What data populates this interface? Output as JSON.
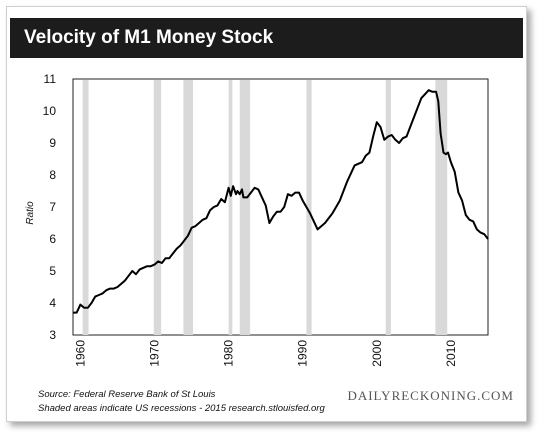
{
  "chart_data": {
    "type": "line",
    "title": "Velocity of M1 Money Stock",
    "xlabel": "",
    "ylabel": "Ratio",
    "xlim": [
      1959,
      2015
    ],
    "ylim": [
      3,
      11
    ],
    "x_ticks": [
      1960,
      1970,
      1980,
      1990,
      2000,
      2010
    ],
    "y_ticks": [
      3,
      4,
      5,
      6,
      7,
      8,
      9,
      10,
      11
    ],
    "grid": false,
    "legend": "none",
    "series_color": "#000000",
    "recession_color": "#d9d9d9",
    "recessions": [
      [
        1960.3,
        1961.1
      ],
      [
        1969.9,
        1970.9
      ],
      [
        1973.9,
        1975.2
      ],
      [
        1980.0,
        1980.5
      ],
      [
        1981.5,
        1982.9
      ],
      [
        1990.5,
        1991.2
      ],
      [
        2001.2,
        2001.9
      ],
      [
        2007.9,
        2009.5
      ]
    ],
    "series": [
      {
        "x": [
          1959,
          1959.5,
          1960,
          1960.5,
          1961,
          1961.5,
          1962,
          1962.5,
          1963,
          1963.5,
          1964,
          1964.5,
          1965,
          1966,
          1966.5,
          1967,
          1967.5,
          1968,
          1968.5,
          1969,
          1969.5,
          1970,
          1970.5,
          1971,
          1971.5,
          1972,
          1972.5,
          1973,
          1973.5,
          1974,
          1974.5,
          1975,
          1975.5,
          1976,
          1976.5,
          1977,
          1977.5,
          1978,
          1978.5,
          1979,
          1979.5,
          1980,
          1980.3,
          1980.6,
          1981,
          1981.2,
          1981.5,
          1981.8,
          1982,
          1982.5,
          1983,
          1983.5,
          1984,
          1984.5,
          1985,
          1985.5,
          1986,
          1986.5,
          1987,
          1987.5,
          1988,
          1988.5,
          1989,
          1989.5,
          1990,
          1991,
          1992,
          1993,
          1994,
          1995,
          1996,
          1997,
          1998,
          1998.5,
          1999,
          1999.5,
          2000,
          2000.5,
          2001,
          2001.5,
          2002,
          2002.5,
          2003,
          2003.5,
          2004,
          2005,
          2006,
          2007,
          2007.5,
          2008,
          2008.3,
          2008.6,
          2009,
          2009.3,
          2009.6,
          2010,
          2010.5,
          2011,
          2011.5,
          2012,
          2012.5,
          2013,
          2013.5,
          2014,
          2014.5,
          2015
        ],
        "values": [
          3.7,
          3.7,
          3.95,
          3.85,
          3.85,
          4.0,
          4.2,
          4.25,
          4.3,
          4.4,
          4.45,
          4.45,
          4.5,
          4.7,
          4.85,
          5.0,
          4.9,
          5.05,
          5.1,
          5.15,
          5.15,
          5.2,
          5.3,
          5.25,
          5.4,
          5.4,
          5.55,
          5.7,
          5.8,
          5.95,
          6.1,
          6.35,
          6.4,
          6.5,
          6.6,
          6.65,
          6.9,
          7.0,
          7.05,
          7.25,
          7.15,
          7.6,
          7.35,
          7.65,
          7.4,
          7.5,
          7.4,
          7.55,
          7.3,
          7.3,
          7.45,
          7.6,
          7.55,
          7.3,
          7.05,
          6.5,
          6.7,
          6.85,
          6.85,
          7.0,
          7.4,
          7.35,
          7.45,
          7.45,
          7.2,
          6.8,
          6.3,
          6.5,
          6.8,
          7.2,
          7.8,
          8.3,
          8.4,
          8.6,
          8.7,
          9.2,
          9.65,
          9.5,
          9.1,
          9.2,
          9.25,
          9.1,
          9.0,
          9.15,
          9.2,
          9.8,
          10.4,
          10.65,
          10.6,
          10.6,
          10.3,
          9.3,
          8.7,
          8.65,
          8.7,
          8.4,
          8.1,
          7.45,
          7.2,
          6.75,
          6.6,
          6.55,
          6.3,
          6.2,
          6.15,
          6.0
        ]
      }
    ]
  },
  "source_line": "Source: Federal Reserve Bank of St Louis",
  "note_line": "Shaded areas indicate US recessions - 2015 research.stlouisfed.org",
  "brand": "DAILYRECKONING.COM"
}
